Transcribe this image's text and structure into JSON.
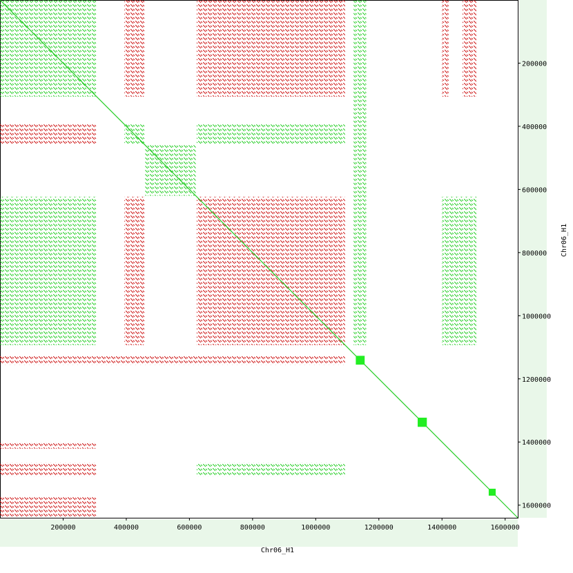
{
  "chart_data": {
    "type": "dotplot",
    "xlabel": "Chr06_H1",
    "ylabel": "Chr06_H1",
    "xlim": [
      0,
      1640000
    ],
    "ylim": [
      0,
      1640000
    ],
    "xticks": [
      200000,
      400000,
      600000,
      800000,
      1000000,
      1200000,
      1400000,
      1600000
    ],
    "yticks": [
      200000,
      400000,
      600000,
      800000,
      1000000,
      1200000,
      1400000,
      1600000
    ],
    "diagonal": {
      "x": [
        0,
        1640000
      ],
      "y": [
        0,
        1640000
      ],
      "color": "#22cc22"
    },
    "repeats": [
      {
        "x": [
          0,
          306000
        ],
        "y": [
          0,
          306000
        ],
        "color": "#22cc22"
      },
      {
        "x": [
          394000,
          459000
        ],
        "y": [
          0,
          306000
        ],
        "color": "#cc1111"
      },
      {
        "x": [
          0,
          306000
        ],
        "y": [
          394000,
          459000
        ],
        "color": "#cc1111"
      },
      {
        "x": [
          623000,
          1093000
        ],
        "y": [
          0,
          306000
        ],
        "color": "#cc1111"
      },
      {
        "x": [
          0,
          306000
        ],
        "y": [
          623000,
          1093000
        ],
        "color": "#22cc22"
      },
      {
        "x": [
          460000,
          620000
        ],
        "y": [
          460000,
          620000
        ],
        "color": "#22cc22"
      },
      {
        "x": [
          394000,
          459000
        ],
        "y": [
          623000,
          1093000
        ],
        "color": "#cc1111"
      },
      {
        "x": [
          623000,
          1093000
        ],
        "y": [
          394000,
          459000
        ],
        "color": "#22cc22"
      },
      {
        "x": [
          623000,
          1093000
        ],
        "y": [
          623000,
          1093000
        ],
        "color": "#cc1111"
      },
      {
        "x": [
          394000,
          459000
        ],
        "y": [
          394000,
          459000
        ],
        "color": "#22cc22"
      },
      {
        "x": [
          1400000,
          1421000
        ],
        "y": [
          0,
          306000
        ],
        "color": "#cc1111"
      },
      {
        "x": [
          1465000,
          1509000
        ],
        "y": [
          0,
          306000
        ],
        "color": "#cc1111"
      },
      {
        "x": [
          0,
          1093000
        ],
        "y": [
          1127000,
          1155000
        ],
        "color": "#cc1111"
      },
      {
        "x": [
          1120000,
          1160000
        ],
        "y": [
          0,
          1093000
        ],
        "color": "#22cc22"
      },
      {
        "x": [
          0,
          306000
        ],
        "y": [
          1400000,
          1421000
        ],
        "color": "#cc1111"
      },
      {
        "x": [
          0,
          306000
        ],
        "y": [
          1465000,
          1509000
        ],
        "color": "#cc1111"
      },
      {
        "x": [
          623000,
          1093000
        ],
        "y": [
          1465000,
          1509000
        ],
        "color": "#22cc22"
      },
      {
        "x": [
          0,
          306000
        ],
        "y": [
          1575000,
          1640000
        ],
        "color": "#cc1111"
      },
      {
        "x": [
          1400000,
          1509000
        ],
        "y": [
          623000,
          1093000
        ],
        "color": "#22cc22"
      }
    ],
    "blocks": [
      {
        "x": [
          1127000,
          1155000
        ],
        "y": [
          1127000,
          1155000
        ],
        "color": "#22ee22"
      },
      {
        "x": [
          1323000,
          1352000
        ],
        "y": [
          1323000,
          1352000
        ],
        "color": "#22ee22"
      },
      {
        "x": [
          1548000,
          1570000
        ],
        "y": [
          1548000,
          1570000
        ],
        "color": "#22ee22"
      }
    ]
  }
}
